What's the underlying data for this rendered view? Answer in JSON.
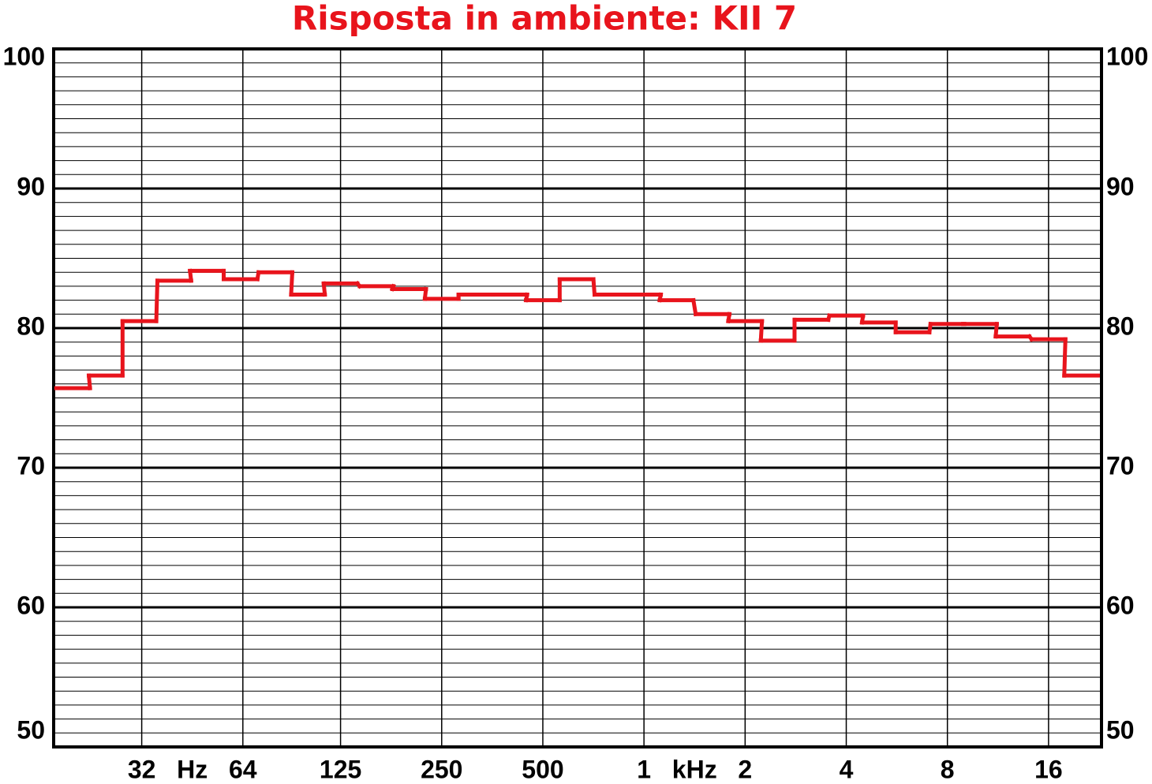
{
  "chart_data": {
    "type": "step",
    "title": "Risposta in ambiente: KII 7",
    "x_units": [
      "Hz",
      "kHz"
    ],
    "x": [
      20,
      25,
      31.5,
      40,
      50,
      63,
      80,
      100,
      125,
      160,
      200,
      250,
      315,
      400,
      500,
      630,
      800,
      1000,
      1250,
      1600,
      2000,
      2500,
      3150,
      4000,
      5000,
      6300,
      8000,
      10000,
      12500,
      16000,
      20000
    ],
    "series": [
      {
        "color": "#e8141c",
        "values": [
          75.7,
          76.6,
          80.5,
          83.4,
          84.1,
          83.5,
          84.0,
          82.4,
          83.2,
          83.0,
          82.8,
          82.1,
          82.4,
          82.4,
          82.0,
          83.5,
          82.4,
          82.4,
          82.0,
          81.0,
          80.5,
          79.1,
          80.6,
          80.9,
          80.4,
          79.7,
          80.3,
          80.3,
          79.4,
          79.2,
          76.6
        ]
      }
    ],
    "xscale": "log",
    "xlim": [
      17.5,
      23000
    ],
    "xticks": [
      32,
      64,
      125,
      250,
      500,
      {
        "value": 1000,
        "label": "1"
      },
      {
        "value": 2000,
        "label": "2"
      },
      {
        "value": 4000,
        "label": "4"
      },
      {
        "value": 8000,
        "label": "8"
      },
      {
        "value": 16000,
        "label": "16"
      }
    ],
    "ylim": [
      50,
      100
    ],
    "yticks": [
      50,
      60,
      70,
      80,
      90,
      100
    ],
    "yminorticks": [
      51,
      52,
      53,
      54,
      55,
      56,
      57,
      58,
      59,
      61,
      62,
      63,
      64,
      65,
      66,
      67,
      68,
      69,
      71,
      72,
      73,
      74,
      75,
      76,
      77,
      78,
      79,
      81,
      82,
      83,
      84,
      85,
      86,
      87,
      88,
      89,
      91,
      92,
      93,
      94,
      95,
      96,
      97,
      98,
      99
    ],
    "grid": true
  }
}
